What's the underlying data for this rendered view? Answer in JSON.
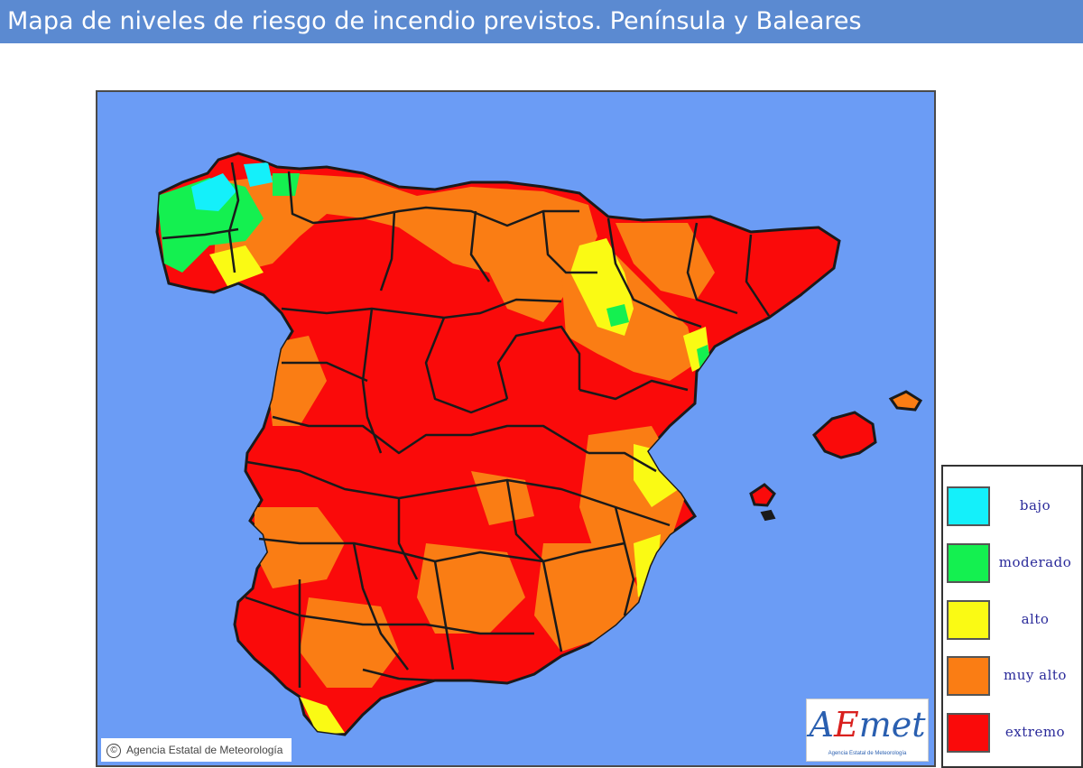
{
  "title": "Mapa de niveles de riesgo de incendio previstos. Península y Baleares",
  "map": {
    "copyright": "Agencia Estatal de Meteorología",
    "logo": {
      "wordmark": "AEmet",
      "subtitle": "Agencia Estatal de Meteorología"
    }
  },
  "legend": {
    "items": [
      {
        "label": "bajo",
        "color": "#14f0fa"
      },
      {
        "label": "moderado",
        "color": "#14f050"
      },
      {
        "label": "alto",
        "color": "#fafa14"
      },
      {
        "label": "muy alto",
        "color": "#fa7d14"
      },
      {
        "label": "extremo",
        "color": "#fa0a0a"
      }
    ]
  },
  "colors": {
    "sea": "#6b9cf5",
    "title_bar": "#5b8ad1",
    "border": "#1a1a1a"
  }
}
